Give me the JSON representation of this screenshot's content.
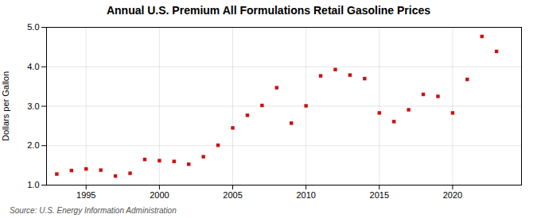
{
  "chart_data": {
    "type": "scatter",
    "title": "Annual U.S. Premium All Formulations Retail Gasoline Prices",
    "ylabel": "Dollars per Gallon",
    "source": "Source: U.S. Energy Information Administration",
    "x": [
      1993,
      1994,
      1995,
      1996,
      1997,
      1998,
      1999,
      2000,
      2001,
      2002,
      2003,
      2004,
      2005,
      2006,
      2007,
      2008,
      2009,
      2010,
      2011,
      2012,
      2013,
      2014,
      2015,
      2016,
      2017,
      2018,
      2019,
      2020,
      2021,
      2022,
      2023
    ],
    "values": [
      1.28,
      1.37,
      1.41,
      1.38,
      1.23,
      1.3,
      1.65,
      1.62,
      1.6,
      1.53,
      1.72,
      2.01,
      2.45,
      2.77,
      3.02,
      3.47,
      2.57,
      3.01,
      3.77,
      3.93,
      3.79,
      3.7,
      2.83,
      2.61,
      2.91,
      3.3,
      3.25,
      2.83,
      3.68,
      4.77,
      4.39
    ],
    "color": "#cc1111",
    "marker": "square",
    "xlim": [
      1992.3,
      2024.7
    ],
    "ylim": [
      1.0,
      5.0
    ],
    "xticks": [
      1995,
      2000,
      2005,
      2010,
      2015,
      2020
    ],
    "yticks": [
      {
        "value": 1,
        "label": "1.0"
      },
      {
        "value": 2,
        "label": "2.0"
      },
      {
        "value": 3,
        "label": "3.0"
      },
      {
        "value": 4,
        "label": "4.0"
      },
      {
        "value": 5,
        "label": "5.0"
      }
    ],
    "grid": true
  }
}
